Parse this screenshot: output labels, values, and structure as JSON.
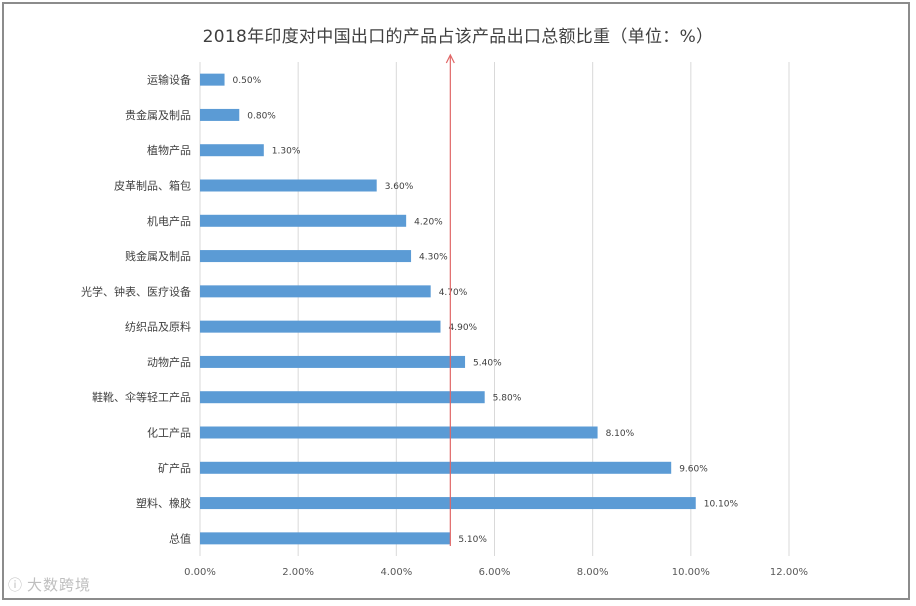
{
  "chart_data": {
    "type": "bar",
    "orientation": "horizontal",
    "title": "2018年印度对中国出口的产品占该产品出口总额比重（单位：%）",
    "categories": [
      "运输设备",
      "贵金属及制品",
      "植物产品",
      "皮革制品、箱包",
      "机电产品",
      "贱金属及制品",
      "光学、钟表、医疗设备",
      "纺织品及原料",
      "动物产品",
      "鞋靴、伞等轻工产品",
      "化工产品",
      "矿产品",
      "塑料、橡胶",
      "总值"
    ],
    "values": [
      0.5,
      0.8,
      1.3,
      3.6,
      4.2,
      4.3,
      4.7,
      4.9,
      5.4,
      5.8,
      8.1,
      9.6,
      10.1,
      5.1
    ],
    "value_labels": [
      "0.50%",
      "0.80%",
      "1.30%",
      "3.60%",
      "4.20%",
      "4.30%",
      "4.70%",
      "4.90%",
      "5.40%",
      "5.80%",
      "8.10%",
      "9.60%",
      "10.10%",
      "5.10%"
    ],
    "xlim": [
      0,
      12
    ],
    "x_ticks": [
      0,
      2,
      4,
      6,
      8,
      10,
      12
    ],
    "x_tick_labels": [
      "0.00%",
      "2.00%",
      "4.00%",
      "6.00%",
      "8.00%",
      "10.00%",
      "12.00%"
    ],
    "grid": true,
    "legend": "none",
    "reference_line": {
      "value": 5.1,
      "color": "#e06666",
      "arrow": true
    },
    "bar_color": "#5b9bd5"
  },
  "watermark": {
    "text": "大数跨境"
  }
}
